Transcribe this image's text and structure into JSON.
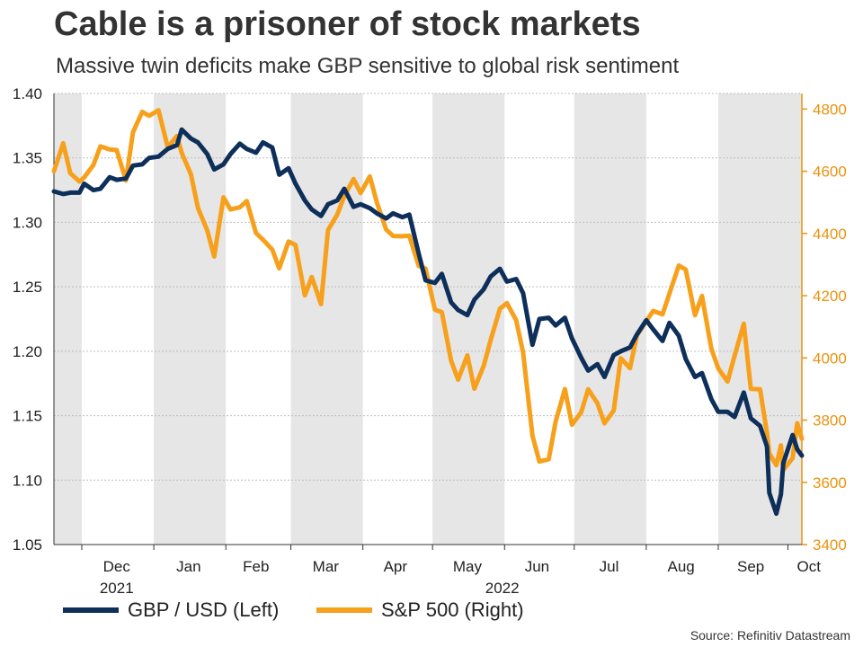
{
  "header": {
    "title": "Cable is a prisoner of stock markets",
    "subtitle": "Massive twin deficits make GBP sensitive to global risk sentiment"
  },
  "source": "Source: Refinitiv Datastream",
  "colors": {
    "gbp": "#0d2f5a",
    "spx": "#f7a01c",
    "band": "#e6e6e6",
    "grid": "#bdbdbd",
    "axis_left": "#222222",
    "axis_right": "#e9930f"
  },
  "chart_data": {
    "type": "line",
    "title": "Cable is a prisoner of stock markets",
    "x_start": "2021-11-19",
    "x_end": "2022-10-07",
    "month_labels": [
      {
        "label": "Dec",
        "date": "2021-12-16"
      },
      {
        "label": "Jan",
        "date": "2022-01-16"
      },
      {
        "label": "Feb",
        "date": "2022-02-14"
      },
      {
        "label": "Mar",
        "date": "2022-03-16"
      },
      {
        "label": "Apr",
        "date": "2022-04-15"
      },
      {
        "label": "May",
        "date": "2022-05-16"
      },
      {
        "label": "Jun",
        "date": "2022-06-15"
      },
      {
        "label": "Jul",
        "date": "2022-07-16"
      },
      {
        "label": "Aug",
        "date": "2022-08-16"
      },
      {
        "label": "Sep",
        "date": "2022-09-15"
      },
      {
        "label": "Oct",
        "date": "2022-10-10"
      }
    ],
    "year_labels": [
      {
        "label": "2021",
        "date": "2021-12-16"
      },
      {
        "label": "2022",
        "date": "2022-05-31"
      }
    ],
    "shaded_months": [
      [
        "2021-11-19",
        "2021-12-01"
      ],
      [
        "2022-01-01",
        "2022-02-01"
      ],
      [
        "2022-03-01",
        "2022-04-01"
      ],
      [
        "2022-05-01",
        "2022-06-01"
      ],
      [
        "2022-07-01",
        "2022-08-01"
      ],
      [
        "2022-09-01",
        "2022-10-07"
      ]
    ],
    "left_axis": {
      "min": 1.05,
      "max": 1.4,
      "ticks": [
        "1.05",
        "1.10",
        "1.15",
        "1.20",
        "1.25",
        "1.30",
        "1.35",
        "1.40"
      ]
    },
    "right_axis": {
      "min": 3400,
      "max": 4850,
      "ticks": [
        "3400",
        "3600",
        "3800",
        "4000",
        "4200",
        "4400",
        "4600",
        "4800"
      ]
    },
    "series": [
      {
        "name": "GBP / USD (Left)",
        "axis": "left",
        "points": [
          [
            "2021-11-19",
            1.324
          ],
          [
            "2021-11-23",
            1.322
          ],
          [
            "2021-11-26",
            1.323
          ],
          [
            "2021-11-30",
            1.323
          ],
          [
            "2021-12-02",
            1.33
          ],
          [
            "2021-12-06",
            1.325
          ],
          [
            "2021-12-09",
            1.326
          ],
          [
            "2021-12-13",
            1.335
          ],
          [
            "2021-12-16",
            1.333
          ],
          [
            "2021-12-20",
            1.334
          ],
          [
            "2021-12-23",
            1.344
          ],
          [
            "2021-12-27",
            1.345
          ],
          [
            "2021-12-30",
            1.35
          ],
          [
            "2022-01-03",
            1.351
          ],
          [
            "2022-01-07",
            1.357
          ],
          [
            "2022-01-11",
            1.36
          ],
          [
            "2022-01-13",
            1.372
          ],
          [
            "2022-01-17",
            1.365
          ],
          [
            "2022-01-20",
            1.362
          ],
          [
            "2022-01-24",
            1.353
          ],
          [
            "2022-01-27",
            1.341
          ],
          [
            "2022-01-31",
            1.345
          ],
          [
            "2022-02-03",
            1.353
          ],
          [
            "2022-02-07",
            1.361
          ],
          [
            "2022-02-10",
            1.357
          ],
          [
            "2022-02-14",
            1.354
          ],
          [
            "2022-02-17",
            1.362
          ],
          [
            "2022-02-21",
            1.358
          ],
          [
            "2022-02-24",
            1.337
          ],
          [
            "2022-02-28",
            1.342
          ],
          [
            "2022-03-03",
            1.33
          ],
          [
            "2022-03-07",
            1.317
          ],
          [
            "2022-03-10",
            1.31
          ],
          [
            "2022-03-14",
            1.305
          ],
          [
            "2022-03-17",
            1.314
          ],
          [
            "2022-03-21",
            1.317
          ],
          [
            "2022-03-24",
            1.326
          ],
          [
            "2022-03-28",
            1.312
          ],
          [
            "2022-03-31",
            1.314
          ],
          [
            "2022-04-04",
            1.311
          ],
          [
            "2022-04-07",
            1.307
          ],
          [
            "2022-04-11",
            1.303
          ],
          [
            "2022-04-14",
            1.307
          ],
          [
            "2022-04-18",
            1.304
          ],
          [
            "2022-04-21",
            1.306
          ],
          [
            "2022-04-25",
            1.276
          ],
          [
            "2022-04-28",
            1.255
          ],
          [
            "2022-05-02",
            1.253
          ],
          [
            "2022-05-05",
            1.26
          ],
          [
            "2022-05-09",
            1.238
          ],
          [
            "2022-05-12",
            1.232
          ],
          [
            "2022-05-16",
            1.228
          ],
          [
            "2022-05-19",
            1.24
          ],
          [
            "2022-05-23",
            1.248
          ],
          [
            "2022-05-26",
            1.258
          ],
          [
            "2022-05-30",
            1.264
          ],
          [
            "2022-06-02",
            1.254
          ],
          [
            "2022-06-06",
            1.256
          ],
          [
            "2022-06-09",
            1.245
          ],
          [
            "2022-06-13",
            1.205
          ],
          [
            "2022-06-16",
            1.225
          ],
          [
            "2022-06-20",
            1.226
          ],
          [
            "2022-06-23",
            1.22
          ],
          [
            "2022-06-27",
            1.226
          ],
          [
            "2022-06-30",
            1.21
          ],
          [
            "2022-07-04",
            1.195
          ],
          [
            "2022-07-07",
            1.185
          ],
          [
            "2022-07-11",
            1.19
          ],
          [
            "2022-07-14",
            1.18
          ],
          [
            "2022-07-18",
            1.197
          ],
          [
            "2022-07-21",
            1.2
          ],
          [
            "2022-07-25",
            1.203
          ],
          [
            "2022-07-28",
            1.213
          ],
          [
            "2022-08-01",
            1.224
          ],
          [
            "2022-08-04",
            1.217
          ],
          [
            "2022-08-08",
            1.208
          ],
          [
            "2022-08-11",
            1.222
          ],
          [
            "2022-08-15",
            1.212
          ],
          [
            "2022-08-18",
            1.194
          ],
          [
            "2022-08-22",
            1.18
          ],
          [
            "2022-08-25",
            1.183
          ],
          [
            "2022-08-29",
            1.163
          ],
          [
            "2022-09-01",
            1.153
          ],
          [
            "2022-09-05",
            1.153
          ],
          [
            "2022-09-08",
            1.149
          ],
          [
            "2022-09-12",
            1.168
          ],
          [
            "2022-09-15",
            1.148
          ],
          [
            "2022-09-19",
            1.142
          ],
          [
            "2022-09-22",
            1.126
          ],
          [
            "2022-09-23",
            1.09
          ],
          [
            "2022-09-26",
            1.074
          ],
          [
            "2022-09-28",
            1.089
          ],
          [
            "2022-09-29",
            1.113
          ],
          [
            "2022-10-03",
            1.135
          ],
          [
            "2022-10-05",
            1.124
          ],
          [
            "2022-10-07",
            1.119
          ]
        ]
      },
      {
        "name": "S&P 500 (Right)",
        "axis": "right",
        "points": [
          [
            "2021-11-19",
            4600
          ],
          [
            "2021-11-23",
            4690
          ],
          [
            "2021-11-26",
            4594
          ],
          [
            "2021-11-30",
            4567
          ],
          [
            "2021-12-02",
            4580
          ],
          [
            "2021-12-06",
            4620
          ],
          [
            "2021-12-09",
            4680
          ],
          [
            "2021-12-13",
            4670
          ],
          [
            "2021-12-16",
            4668
          ],
          [
            "2021-12-20",
            4570
          ],
          [
            "2021-12-23",
            4725
          ],
          [
            "2021-12-27",
            4791
          ],
          [
            "2021-12-30",
            4778
          ],
          [
            "2022-01-03",
            4796
          ],
          [
            "2022-01-07",
            4677
          ],
          [
            "2022-01-11",
            4713
          ],
          [
            "2022-01-13",
            4659
          ],
          [
            "2022-01-17",
            4590
          ],
          [
            "2022-01-20",
            4482
          ],
          [
            "2022-01-24",
            4410
          ],
          [
            "2022-01-27",
            4326
          ],
          [
            "2022-01-31",
            4516
          ],
          [
            "2022-02-03",
            4477
          ],
          [
            "2022-02-07",
            4484
          ],
          [
            "2022-02-10",
            4504
          ],
          [
            "2022-02-14",
            4401
          ],
          [
            "2022-02-17",
            4380
          ],
          [
            "2022-02-21",
            4348
          ],
          [
            "2022-02-24",
            4288
          ],
          [
            "2022-02-28",
            4374
          ],
          [
            "2022-03-03",
            4363
          ],
          [
            "2022-03-07",
            4201
          ],
          [
            "2022-03-10",
            4260
          ],
          [
            "2022-03-14",
            4173
          ],
          [
            "2022-03-17",
            4411
          ],
          [
            "2022-03-21",
            4461
          ],
          [
            "2022-03-24",
            4520
          ],
          [
            "2022-03-28",
            4575
          ],
          [
            "2022-03-31",
            4530
          ],
          [
            "2022-04-04",
            4583
          ],
          [
            "2022-04-07",
            4500
          ],
          [
            "2022-04-11",
            4413
          ],
          [
            "2022-04-14",
            4392
          ],
          [
            "2022-04-18",
            4391
          ],
          [
            "2022-04-21",
            4393
          ],
          [
            "2022-04-25",
            4296
          ],
          [
            "2022-04-28",
            4287
          ],
          [
            "2022-05-02",
            4155
          ],
          [
            "2022-05-05",
            4147
          ],
          [
            "2022-05-09",
            3991
          ],
          [
            "2022-05-12",
            3930
          ],
          [
            "2022-05-16",
            4008
          ],
          [
            "2022-05-19",
            3901
          ],
          [
            "2022-05-23",
            3974
          ],
          [
            "2022-05-26",
            4057
          ],
          [
            "2022-05-30",
            4158
          ],
          [
            "2022-06-02",
            4176
          ],
          [
            "2022-06-06",
            4121
          ],
          [
            "2022-06-09",
            4017
          ],
          [
            "2022-06-13",
            3750
          ],
          [
            "2022-06-16",
            3667
          ],
          [
            "2022-06-20",
            3674
          ],
          [
            "2022-06-23",
            3795
          ],
          [
            "2022-06-27",
            3900
          ],
          [
            "2022-06-30",
            3785
          ],
          [
            "2022-07-04",
            3825
          ],
          [
            "2022-07-07",
            3899
          ],
          [
            "2022-07-11",
            3854
          ],
          [
            "2022-07-14",
            3790
          ],
          [
            "2022-07-18",
            3831
          ],
          [
            "2022-07-21",
            3999
          ],
          [
            "2022-07-25",
            3967
          ],
          [
            "2022-07-28",
            4072
          ],
          [
            "2022-08-01",
            4118
          ],
          [
            "2022-08-04",
            4151
          ],
          [
            "2022-08-08",
            4140
          ],
          [
            "2022-08-11",
            4207
          ],
          [
            "2022-08-15",
            4297
          ],
          [
            "2022-08-18",
            4284
          ],
          [
            "2022-08-22",
            4137
          ],
          [
            "2022-08-25",
            4199
          ],
          [
            "2022-08-29",
            4031
          ],
          [
            "2022-09-01",
            3966
          ],
          [
            "2022-09-05",
            3924
          ],
          [
            "2022-09-08",
            4006
          ],
          [
            "2022-09-12",
            4110
          ],
          [
            "2022-09-15",
            3901
          ],
          [
            "2022-09-19",
            3899
          ],
          [
            "2022-09-22",
            3758
          ],
          [
            "2022-09-23",
            3693
          ],
          [
            "2022-09-26",
            3655
          ],
          [
            "2022-09-28",
            3719
          ],
          [
            "2022-09-29",
            3640
          ],
          [
            "2022-10-03",
            3678
          ],
          [
            "2022-10-05",
            3790
          ],
          [
            "2022-10-07",
            3740
          ]
        ]
      }
    ]
  },
  "legend": {
    "gbp_label": "GBP / USD (Left)",
    "spx_label": "S&P 500 (Right)"
  }
}
